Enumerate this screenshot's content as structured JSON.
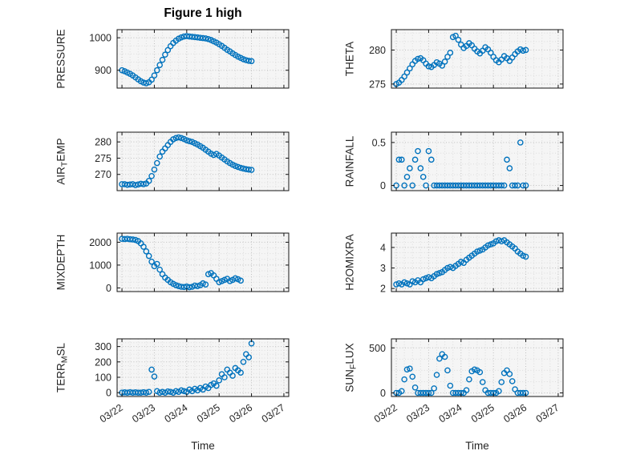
{
  "chart_data": {
    "type": "scatter",
    "title": "Figure 1 high",
    "marker": {
      "shape": "circle-open",
      "color": "#0072BD"
    },
    "x_axis": {
      "label": "Time",
      "lim": [
        -0.15,
        5.15
      ],
      "ticks": [
        0,
        1,
        2,
        3,
        4,
        5
      ],
      "tick_labels": [
        "03/22",
        "03/23",
        "03/24",
        "03/25",
        "03/26",
        "03/27"
      ]
    },
    "x": [
      0,
      0.083,
      0.167,
      0.25,
      0.333,
      0.417,
      0.5,
      0.583,
      0.667,
      0.75,
      0.833,
      0.917,
      1,
      1.083,
      1.167,
      1.25,
      1.333,
      1.417,
      1.5,
      1.583,
      1.667,
      1.75,
      1.833,
      1.917,
      2,
      2.083,
      2.167,
      2.25,
      2.333,
      2.417,
      2.5,
      2.583,
      2.667,
      2.75,
      2.833,
      2.917,
      3,
      3.083,
      3.167,
      3.25,
      3.333,
      3.417,
      3.5,
      3.583,
      3.667,
      3.75,
      3.833,
      3.917,
      4
    ],
    "subplots": [
      {
        "name": "PRESSURE",
        "row": 0,
        "col": 0,
        "ylabel": {
          "pre": "PRESSURE",
          "sub": "",
          "post": ""
        },
        "ylim": [
          845,
          1025
        ],
        "yticks": [
          900,
          1000
        ],
        "ytick_labels": [
          "900",
          "1000"
        ],
        "values": [
          900,
          897,
          893,
          889,
          884,
          878,
          872,
          866,
          862,
          860,
          863,
          871,
          884,
          900,
          916,
          932,
          948,
          962,
          974,
          984,
          991,
          997,
          1001,
          1004,
          1005,
          1004,
          1003,
          1002,
          1001,
          1000,
          999,
          998,
          996,
          993,
          989,
          985,
          980,
          975,
          969,
          963,
          958,
          952,
          947,
          942,
          938,
          934,
          931,
          929,
          928
        ]
      },
      {
        "name": "THETA",
        "row": 0,
        "col": 1,
        "ylabel": {
          "pre": "THETA",
          "sub": "",
          "post": ""
        },
        "ylim": [
          274.4,
          283
        ],
        "yticks": [
          275,
          280
        ],
        "ytick_labels": [
          "275",
          "280"
        ],
        "values": [
          275,
          275.2,
          275.6,
          276.1,
          276.7,
          277.3,
          277.9,
          278.4,
          278.7,
          278.8,
          278.5,
          278,
          277.6,
          277.5,
          277.8,
          278.2,
          278,
          277.7,
          278.3,
          279,
          279.6,
          281.9,
          282.1,
          281.5,
          280.8,
          280.3,
          280.6,
          281,
          280.7,
          280.2,
          279.8,
          279.5,
          279.9,
          280.4,
          280.1,
          279.6,
          279,
          278.5,
          278.2,
          278.6,
          279.1,
          278.8,
          278.4,
          278.9,
          279.4,
          279.8,
          280.1,
          279.9,
          280
        ]
      },
      {
        "name": "AIR_TEMP",
        "row": 1,
        "col": 0,
        "ylabel": {
          "pre": "AIR",
          "sub": "T",
          "post": "EMP"
        },
        "ylim": [
          265,
          283
        ],
        "yticks": [
          270,
          275,
          280
        ],
        "ytick_labels": [
          "270",
          "275",
          "280"
        ],
        "values": [
          267,
          267,
          266.8,
          266.9,
          267,
          266.7,
          266.9,
          267.1,
          267,
          267.2,
          268,
          269.5,
          271.5,
          273.5,
          275.5,
          277,
          278,
          279,
          280,
          280.8,
          281.2,
          281.4,
          281.2,
          280.9,
          280.5,
          280.2,
          280,
          279.6,
          279.2,
          278.7,
          278.2,
          277.6,
          277,
          276.4,
          276,
          276.3,
          275.8,
          275.2,
          274.6,
          274,
          273.5,
          273,
          272.6,
          272.3,
          272,
          271.8,
          271.6,
          271.5,
          271.4
        ]
      },
      {
        "name": "RAINFALL",
        "row": 1,
        "col": 1,
        "ylabel": {
          "pre": "RAINFALL",
          "sub": "",
          "post": ""
        },
        "ylim": [
          -0.06,
          0.62
        ],
        "yticks": [
          0,
          0.5
        ],
        "ytick_labels": [
          "0",
          "0.5"
        ],
        "values": [
          0,
          0.3,
          0.3,
          0,
          0.1,
          0.2,
          0,
          0.3,
          0.4,
          0.2,
          0.1,
          0,
          0.4,
          0.3,
          0,
          0,
          0,
          0,
          0,
          0,
          0,
          0,
          0,
          0,
          0,
          0,
          0,
          0,
          0,
          0,
          0,
          0,
          0,
          0,
          0,
          0,
          0,
          0,
          0,
          0,
          0,
          0.3,
          0.2,
          0,
          0,
          0,
          0.5,
          0,
          0
        ]
      },
      {
        "name": "MIXDEPTH",
        "row": 2,
        "col": 0,
        "ylabel": {
          "pre": "MIXDEPTH",
          "sub": "",
          "post": ""
        },
        "ylim": [
          -160,
          2400
        ],
        "yticks": [
          0,
          1000,
          2000
        ],
        "ytick_labels": [
          "0",
          "1000",
          "2000"
        ],
        "values": [
          2150,
          2140,
          2150,
          2130,
          2120,
          2100,
          2050,
          1950,
          1800,
          1600,
          1400,
          1150,
          950,
          1050,
          800,
          600,
          450,
          350,
          250,
          180,
          120,
          80,
          50,
          40,
          60,
          30,
          50,
          100,
          80,
          120,
          200,
          150,
          600,
          650,
          550,
          400,
          250,
          300,
          350,
          400,
          300,
          350,
          420,
          380,
          320,
          null,
          null,
          null,
          null
        ]
      },
      {
        "name": "H2OMIXRA",
        "row": 2,
        "col": 1,
        "ylabel": {
          "pre": "H2OMIXRA",
          "sub": "",
          "post": ""
        },
        "ylim": [
          1.85,
          4.7
        ],
        "yticks": [
          2,
          3,
          4
        ],
        "ytick_labels": [
          "2",
          "3",
          "4"
        ],
        "values": [
          2.2,
          2.25,
          2.2,
          2.3,
          2.25,
          2.2,
          2.35,
          2.3,
          2.4,
          2.3,
          2.45,
          2.5,
          2.55,
          2.5,
          2.6,
          2.7,
          2.75,
          2.8,
          2.9,
          3,
          3.05,
          3,
          3.1,
          3.2,
          3.3,
          3.25,
          3.4,
          3.5,
          3.6,
          3.7,
          3.8,
          3.85,
          3.9,
          4,
          4.1,
          4.15,
          4.2,
          4.3,
          4.35,
          4.3,
          4.35,
          4.25,
          4.15,
          4.05,
          3.95,
          3.8,
          3.7,
          3.6,
          3.55
        ]
      },
      {
        "name": "TERR_MSL",
        "row": 3,
        "col": 0,
        "ylabel": {
          "pre": "TERR",
          "sub": "M",
          "post": "SL"
        },
        "ylim": [
          -25,
          350
        ],
        "yticks": [
          0,
          100,
          200,
          300
        ],
        "ytick_labels": [
          "0",
          "100",
          "200",
          "300"
        ],
        "values": [
          0,
          2,
          0,
          3,
          0,
          2,
          0,
          0,
          3,
          0,
          5,
          150,
          105,
          10,
          0,
          5,
          0,
          8,
          5,
          0,
          10,
          5,
          15,
          10,
          5,
          20,
          10,
          25,
          15,
          30,
          20,
          40,
          30,
          50,
          60,
          45,
          80,
          120,
          100,
          150,
          130,
          110,
          160,
          145,
          130,
          200,
          250,
          230,
          320
        ]
      },
      {
        "name": "SUN_FLUX",
        "row": 3,
        "col": 1,
        "ylabel": {
          "pre": "SUN",
          "sub": "F",
          "post": "LUX"
        },
        "ylim": [
          -40,
          600
        ],
        "yticks": [
          0,
          500
        ],
        "ytick_labels": [
          "0",
          "500"
        ],
        "values": [
          0,
          0,
          20,
          150,
          260,
          270,
          180,
          60,
          0,
          0,
          0,
          0,
          0,
          0,
          50,
          200,
          380,
          430,
          400,
          250,
          80,
          0,
          0,
          0,
          0,
          0,
          30,
          150,
          240,
          260,
          250,
          230,
          120,
          30,
          0,
          0,
          0,
          0,
          20,
          120,
          220,
          250,
          210,
          130,
          40,
          0,
          0,
          0,
          0
        ]
      }
    ]
  }
}
